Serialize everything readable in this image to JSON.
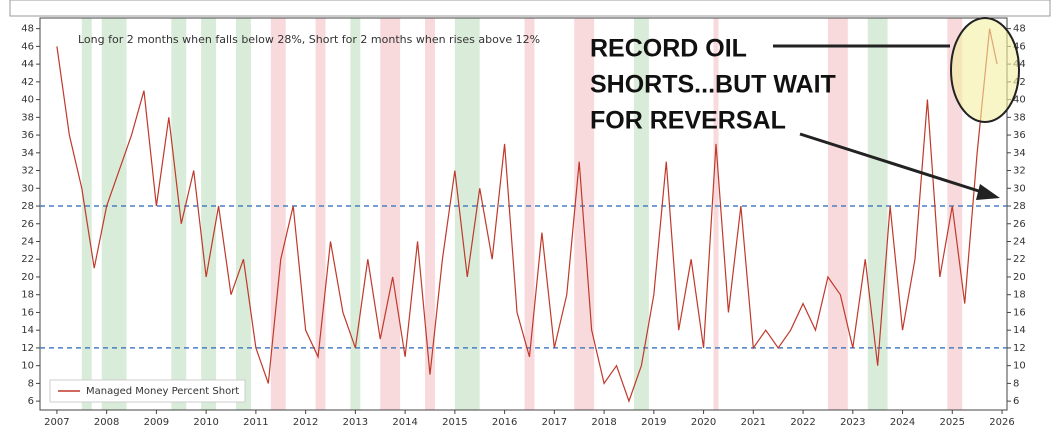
{
  "chart_data": {
    "type": "line",
    "annotation": "Long for 2 months when falls below 28%, Short for 2 months when rises above 12%",
    "callout": [
      "RECORD OIL",
      "SHORTS...BUT WAIT",
      "FOR REVERSAL"
    ],
    "xlim": [
      2006.66,
      2026.1
    ],
    "ylim": [
      5,
      49.2
    ],
    "xticks": [
      2007,
      2008,
      2009,
      2010,
      2011,
      2012,
      2013,
      2014,
      2015,
      2016,
      2017,
      2018,
      2019,
      2020,
      2021,
      2022,
      2023,
      2024,
      2025,
      2026
    ],
    "yticks": [
      6,
      8,
      10,
      12,
      14,
      16,
      18,
      20,
      22,
      24,
      26,
      28,
      30,
      32,
      34,
      36,
      38,
      40,
      42,
      44,
      46,
      48
    ],
    "hlines": [
      28,
      12
    ],
    "hline_color": "#4a7fc0",
    "spans": [
      {
        "start": 2007.5,
        "end": 2007.7,
        "color": "#d9ecd9"
      },
      {
        "start": 2007.9,
        "end": 2008.4,
        "color": "#d9ecd9"
      },
      {
        "start": 2009.3,
        "end": 2009.6,
        "color": "#d9ecd9"
      },
      {
        "start": 2009.9,
        "end": 2010.2,
        "color": "#d9ecd9"
      },
      {
        "start": 2010.6,
        "end": 2010.9,
        "color": "#d9ecd9"
      },
      {
        "start": 2011.3,
        "end": 2011.6,
        "color": "#f8dadc"
      },
      {
        "start": 2012.2,
        "end": 2012.4,
        "color": "#f8dadc"
      },
      {
        "start": 2012.9,
        "end": 2013.1,
        "color": "#d9ecd9"
      },
      {
        "start": 2013.5,
        "end": 2013.9,
        "color": "#f8dadc"
      },
      {
        "start": 2014.4,
        "end": 2014.6,
        "color": "#f8dadc"
      },
      {
        "start": 2015.0,
        "end": 2015.5,
        "color": "#d9ecd9"
      },
      {
        "start": 2016.4,
        "end": 2016.6,
        "color": "#f8dadc"
      },
      {
        "start": 2017.4,
        "end": 2017.8,
        "color": "#f8dadc"
      },
      {
        "start": 2018.6,
        "end": 2018.9,
        "color": "#d9ecd9"
      },
      {
        "start": 2020.2,
        "end": 2020.3,
        "color": "#f8dadc"
      },
      {
        "start": 2022.5,
        "end": 2022.9,
        "color": "#f8dadc"
      },
      {
        "start": 2023.3,
        "end": 2023.7,
        "color": "#d9ecd9"
      },
      {
        "start": 2024.9,
        "end": 2025.2,
        "color": "#f8dadc"
      }
    ],
    "series": [
      {
        "name": "Managed Money Percent Short",
        "color": "#c0392b",
        "x": [
          2007.0,
          2007.25,
          2007.5,
          2007.75,
          2008.0,
          2008.25,
          2008.5,
          2008.75,
          2009.0,
          2009.25,
          2009.5,
          2009.75,
          2010.0,
          2010.25,
          2010.5,
          2010.75,
          2011.0,
          2011.25,
          2011.5,
          2011.75,
          2012.0,
          2012.25,
          2012.5,
          2012.75,
          2013.0,
          2013.25,
          2013.5,
          2013.75,
          2014.0,
          2014.25,
          2014.5,
          2014.75,
          2015.0,
          2015.25,
          2015.5,
          2015.75,
          2016.0,
          2016.25,
          2016.5,
          2016.75,
          2017.0,
          2017.25,
          2017.5,
          2017.75,
          2018.0,
          2018.25,
          2018.5,
          2018.75,
          2019.0,
          2019.25,
          2019.5,
          2019.75,
          2020.0,
          2020.25,
          2020.5,
          2020.75,
          2021.0,
          2021.25,
          2021.5,
          2021.75,
          2022.0,
          2022.25,
          2022.5,
          2022.75,
          2023.0,
          2023.25,
          2023.5,
          2023.75,
          2024.0,
          2024.25,
          2024.5,
          2024.75,
          2025.0,
          2025.25,
          2025.5,
          2025.75,
          2025.9
        ],
        "values": [
          46,
          36,
          30,
          21,
          28,
          32,
          36,
          41,
          28,
          38,
          26,
          32,
          20,
          28,
          18,
          22,
          12,
          8,
          22,
          28,
          14,
          11,
          24,
          16,
          12,
          22,
          13,
          20,
          11,
          24,
          9,
          22,
          32,
          20,
          30,
          22,
          35,
          16,
          11,
          25,
          12,
          18,
          33,
          14,
          8,
          10,
          6,
          10,
          18,
          33,
          14,
          22,
          12,
          35,
          16,
          28,
          12,
          14,
          12,
          14,
          17,
          14,
          20,
          18,
          12,
          22,
          10,
          28,
          14,
          22,
          40,
          20,
          28,
          17,
          34,
          48,
          44
        ]
      }
    ]
  }
}
